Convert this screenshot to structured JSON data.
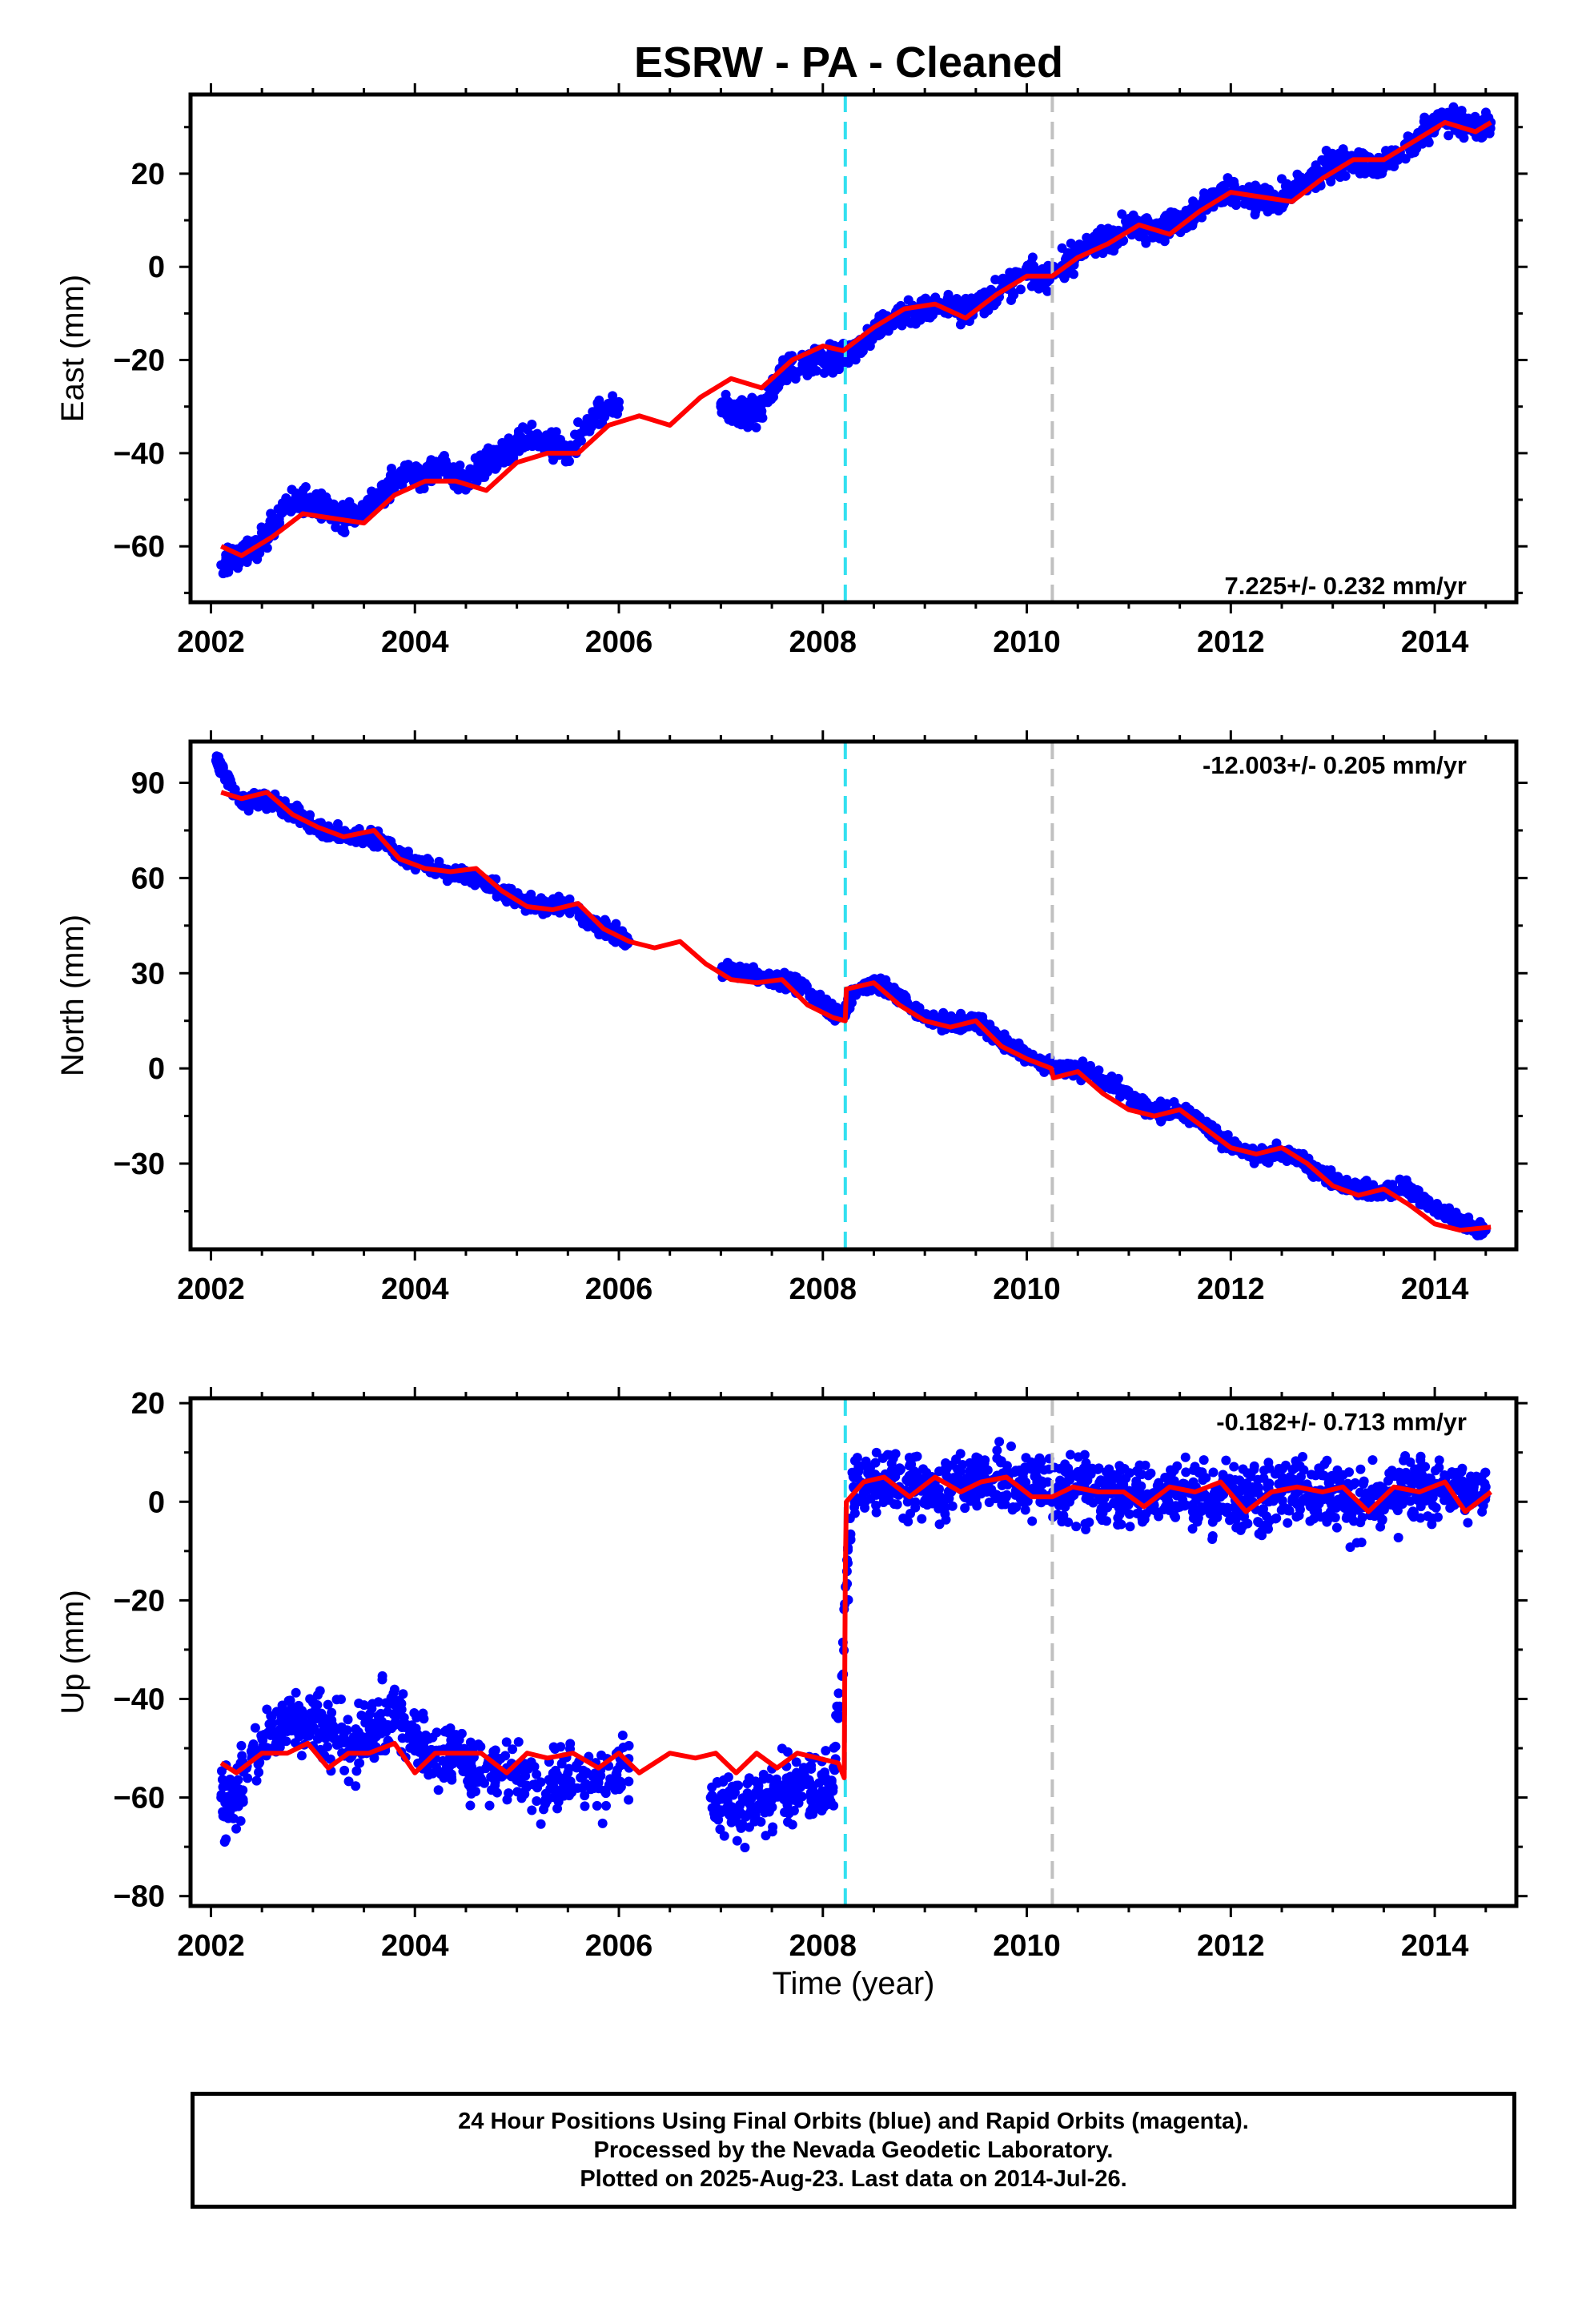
{
  "title": "ESRW  - PA - Cleaned",
  "xlabel": "Time (year)",
  "caption": [
    "24 Hour Positions Using Final Orbits (blue) and Rapid Orbits (magenta).",
    "Processed by the Nevada Geodetic Laboratory.",
    "Plotted on 2025-Aug-23. Last data on 2014-Jul-26."
  ],
  "colors": {
    "points": "#0000ff",
    "model": "#ff0000",
    "cyan_line": "#33e0f0",
    "gray_line": "#c0c0c0",
    "frame": "#000000"
  },
  "chart_data": [
    {
      "type": "scatter",
      "ylabel": "East (mm)",
      "rate_label": "7.225+/- 0.232 mm/yr",
      "xlim": [
        2001.8,
        2014.8
      ],
      "ylim": [
        -72,
        37
      ],
      "xticks": [
        2002,
        2004,
        2006,
        2008,
        2010,
        2012,
        2014
      ],
      "yticks": [
        -60,
        -40,
        -20,
        0,
        20
      ],
      "grid": false,
      "vlines": [
        {
          "x": 2008.22,
          "color": "cyan"
        },
        {
          "x": 2010.25,
          "color": "gray"
        }
      ],
      "series": [
        {
          "kind": "points",
          "x": [
            2002.1,
            2002.3,
            2002.5,
            2002.7,
            2002.9,
            2003.1,
            2003.3,
            2003.5,
            2003.7,
            2003.9,
            2004.1,
            2004.3,
            2004.5,
            2004.7,
            2004.9,
            2005.1,
            2005.3,
            2005.5,
            2005.75,
            2006.0,
            2007.0,
            2007.2,
            2007.4,
            2007.6,
            2007.8,
            2008.0,
            2008.2,
            2008.4,
            2008.6,
            2008.8,
            2009.0,
            2009.2,
            2009.4,
            2009.6,
            2009.8,
            2010.0,
            2010.2,
            2010.4,
            2010.6,
            2010.8,
            2011.0,
            2011.2,
            2011.4,
            2011.6,
            2011.8,
            2012.0,
            2012.2,
            2012.4,
            2012.6,
            2012.8,
            2013.0,
            2013.2,
            2013.4,
            2013.6,
            2013.8,
            2014.0,
            2014.2,
            2014.4,
            2014.55
          ],
          "y": [
            -64,
            -62,
            -59,
            -52,
            -50,
            -51,
            -54,
            -52,
            -48,
            -45,
            -44,
            -43,
            -46,
            -42,
            -40,
            -37,
            -38,
            -40,
            -32,
            -29,
            -30,
            -32,
            -31,
            -22,
            -21,
            -20,
            -19,
            -16,
            -12,
            -10,
            -9,
            -8,
            -10,
            -7,
            -4,
            -2,
            -2,
            1,
            4,
            6,
            9,
            8,
            9,
            11,
            14,
            16,
            15,
            14,
            16,
            19,
            22,
            23,
            21,
            23,
            27,
            31,
            32,
            29,
            31
          ],
          "spread": 2.5
        },
        {
          "kind": "model",
          "x": [
            2002.1,
            2002.3,
            2002.6,
            2002.9,
            2003.2,
            2003.5,
            2003.8,
            2004.1,
            2004.4,
            2004.7,
            2005.0,
            2005.3,
            2005.6,
            2005.9,
            2006.2,
            2006.5,
            2006.8,
            2007.1,
            2007.4,
            2007.7,
            2008.0,
            2008.2,
            2008.5,
            2008.8,
            2009.1,
            2009.4,
            2009.7,
            2010.0,
            2010.25,
            2010.5,
            2010.8,
            2011.1,
            2011.4,
            2011.7,
            2012.0,
            2012.3,
            2012.6,
            2012.9,
            2013.2,
            2013.5,
            2013.8,
            2014.1,
            2014.4,
            2014.55
          ],
          "y": [
            -60,
            -62,
            -58,
            -53,
            -54,
            -55,
            -49,
            -46,
            -46,
            -48,
            -42,
            -40,
            -40,
            -34,
            -32,
            -34,
            -28,
            -24,
            -26,
            -20,
            -17,
            -18,
            -13,
            -9,
            -8,
            -11,
            -6,
            -2,
            -2,
            2,
            5,
            9,
            7,
            12,
            16,
            15,
            14,
            19,
            23,
            23,
            27,
            31,
            29,
            31
          ]
        }
      ]
    },
    {
      "type": "scatter",
      "ylabel": "North (mm)",
      "rate_label": "-12.003+/- 0.205 mm/yr",
      "xlim": [
        2001.8,
        2014.8
      ],
      "ylim": [
        -57,
        103
      ],
      "xticks": [
        2002,
        2004,
        2006,
        2008,
        2010,
        2012,
        2014
      ],
      "yticks": [
        -30,
        0,
        30,
        60,
        90
      ],
      "grid": false,
      "vlines": [
        {
          "x": 2008.22,
          "color": "cyan"
        },
        {
          "x": 2010.25,
          "color": "gray"
        }
      ],
      "series": [
        {
          "kind": "points",
          "x": [
            2002.05,
            2002.1,
            2002.3,
            2002.5,
            2002.7,
            2002.9,
            2003.1,
            2003.3,
            2003.5,
            2003.7,
            2003.9,
            2004.1,
            2004.3,
            2004.5,
            2004.7,
            2004.9,
            2005.1,
            2005.3,
            2005.5,
            2005.7,
            2005.9,
            2006.1,
            2007.0,
            2007.2,
            2007.4,
            2007.6,
            2007.8,
            2008.0,
            2008.2,
            2008.3,
            2008.5,
            2008.7,
            2008.9,
            2009.1,
            2009.3,
            2009.5,
            2009.7,
            2009.9,
            2010.1,
            2010.3,
            2010.5,
            2010.7,
            2010.9,
            2011.1,
            2011.3,
            2011.5,
            2011.7,
            2011.9,
            2012.1,
            2012.3,
            2012.5,
            2012.7,
            2012.9,
            2013.1,
            2013.3,
            2013.5,
            2013.7,
            2013.9,
            2014.1,
            2014.3,
            2014.5
          ],
          "y": [
            97,
            95,
            84,
            85,
            82,
            79,
            75,
            73,
            73,
            72,
            66,
            64,
            62,
            60,
            58,
            55,
            52,
            51,
            52,
            46,
            43,
            40,
            31,
            30,
            29,
            28,
            26,
            20,
            17,
            24,
            27,
            24,
            18,
            15,
            14,
            15,
            10,
            6,
            2,
            0,
            0,
            -3,
            -6,
            -11,
            -14,
            -13,
            -17,
            -22,
            -26,
            -28,
            -27,
            -29,
            -33,
            -37,
            -38,
            -39,
            -37,
            -42,
            -46,
            -49,
            -51
          ],
          "spread": 2.2
        },
        {
          "kind": "model",
          "x": [
            2002.1,
            2002.3,
            2002.55,
            2002.8,
            2003.05,
            2003.3,
            2003.6,
            2003.85,
            2004.1,
            2004.35,
            2004.6,
            2004.85,
            2005.1,
            2005.35,
            2005.6,
            2005.85,
            2006.1,
            2006.35,
            2006.6,
            2006.85,
            2007.1,
            2007.35,
            2007.6,
            2007.85,
            2008.1,
            2008.22,
            2008.23,
            2008.5,
            2008.75,
            2009.0,
            2009.25,
            2009.5,
            2009.75,
            2010.0,
            2010.24,
            2010.26,
            2010.5,
            2010.75,
            2011.0,
            2011.25,
            2011.5,
            2011.75,
            2012.0,
            2012.25,
            2012.5,
            2012.75,
            2013.0,
            2013.25,
            2013.5,
            2013.75,
            2014.0,
            2014.25,
            2014.55
          ],
          "y": [
            87,
            85,
            87,
            80,
            76,
            73,
            75,
            66,
            63,
            62,
            63,
            56,
            51,
            50,
            52,
            44,
            40,
            38,
            40,
            33,
            28,
            27,
            28,
            20,
            16,
            15,
            25,
            27,
            20,
            15,
            13,
            15,
            7,
            3,
            0,
            -3,
            -1,
            -8,
            -13,
            -15,
            -13,
            -19,
            -25,
            -27,
            -25,
            -30,
            -37,
            -40,
            -38,
            -43,
            -49,
            -51,
            -50
          ]
        }
      ]
    },
    {
      "type": "scatter",
      "ylabel": "Up (mm)",
      "rate_label": "-0.182+/- 0.713 mm/yr",
      "xlim": [
        2001.8,
        2014.8
      ],
      "ylim": [
        -82,
        21
      ],
      "xticks": [
        2002,
        2004,
        2006,
        2008,
        2010,
        2012,
        2014
      ],
      "yticks": [
        -80,
        -60,
        -40,
        -20,
        0,
        20
      ],
      "grid": false,
      "vlines": [
        {
          "x": 2008.22,
          "color": "cyan"
        },
        {
          "x": 2010.25,
          "color": "gray"
        }
      ],
      "series": [
        {
          "kind": "points",
          "x": [
            2002.1,
            2002.2,
            2002.4,
            2002.6,
            2002.8,
            2003.0,
            2003.2,
            2003.4,
            2003.6,
            2003.8,
            2004.0,
            2004.2,
            2004.4,
            2004.6,
            2004.9,
            2005.2,
            2005.5,
            2005.8,
            2006.1,
            2006.9,
            2007.1,
            2007.3,
            2007.5,
            2007.7,
            2007.9,
            2008.1,
            2008.3,
            2008.5,
            2008.7,
            2008.9,
            2009.1,
            2009.3,
            2009.5,
            2009.7,
            2009.9,
            2010.1,
            2010.3,
            2010.5,
            2010.7,
            2010.9,
            2011.1,
            2011.3,
            2011.5,
            2011.7,
            2011.9,
            2012.1,
            2012.3,
            2012.5,
            2012.7,
            2012.9,
            2013.1,
            2013.3,
            2013.5,
            2013.7,
            2013.9,
            2014.1,
            2014.3,
            2014.5
          ],
          "y": [
            -60,
            -62,
            -52,
            -47,
            -44,
            -44,
            -47,
            -50,
            -46,
            -43,
            -48,
            -52,
            -50,
            -55,
            -54,
            -58,
            -55,
            -57,
            -54,
            -60,
            -62,
            -63,
            -60,
            -58,
            -58,
            -58,
            3,
            4,
            5,
            2,
            4,
            3,
            4,
            5,
            3,
            4,
            2,
            3,
            2,
            1,
            1,
            2,
            3,
            1,
            1,
            0,
            1,
            2,
            3,
            2,
            1,
            -1,
            0,
            2,
            3,
            2,
            1,
            3
          ],
          "spread": 6
        },
        {
          "kind": "model",
          "x": [
            2002.1,
            2002.25,
            2002.5,
            2002.75,
            2002.95,
            2003.15,
            2003.35,
            2003.55,
            2003.8,
            2004.0,
            2004.2,
            2004.4,
            2004.65,
            2004.9,
            2005.1,
            2005.3,
            2005.55,
            2005.8,
            2006.0,
            2006.2,
            2006.5,
            2006.75,
            2006.95,
            2007.15,
            2007.35,
            2007.55,
            2007.75,
            2007.95,
            2008.15,
            2008.21,
            2008.22,
            2008.23,
            2008.4,
            2008.6,
            2008.85,
            2009.1,
            2009.35,
            2009.55,
            2009.8,
            2010.05,
            2010.25,
            2010.45,
            2010.7,
            2010.95,
            2011.15,
            2011.4,
            2011.65,
            2011.9,
            2012.15,
            2012.4,
            2012.65,
            2012.9,
            2013.1,
            2013.35,
            2013.6,
            2013.85,
            2014.1,
            2014.3,
            2014.55
          ],
          "y": [
            -53,
            -55,
            -51,
            -51,
            -49,
            -54,
            -51,
            -51,
            -49,
            -55,
            -51,
            -51,
            -51,
            -55,
            -51,
            -52,
            -51,
            -54,
            -51,
            -55,
            -51,
            -52,
            -51,
            -55,
            -51,
            -54,
            -51,
            -52,
            -53,
            -56,
            -15,
            0,
            4,
            5,
            1,
            5,
            2,
            4,
            5,
            1,
            1,
            3,
            2,
            2,
            -1,
            3,
            2,
            4,
            -2,
            2,
            3,
            2,
            3,
            -2,
            3,
            2,
            4,
            -2,
            2
          ]
        }
      ]
    }
  ]
}
